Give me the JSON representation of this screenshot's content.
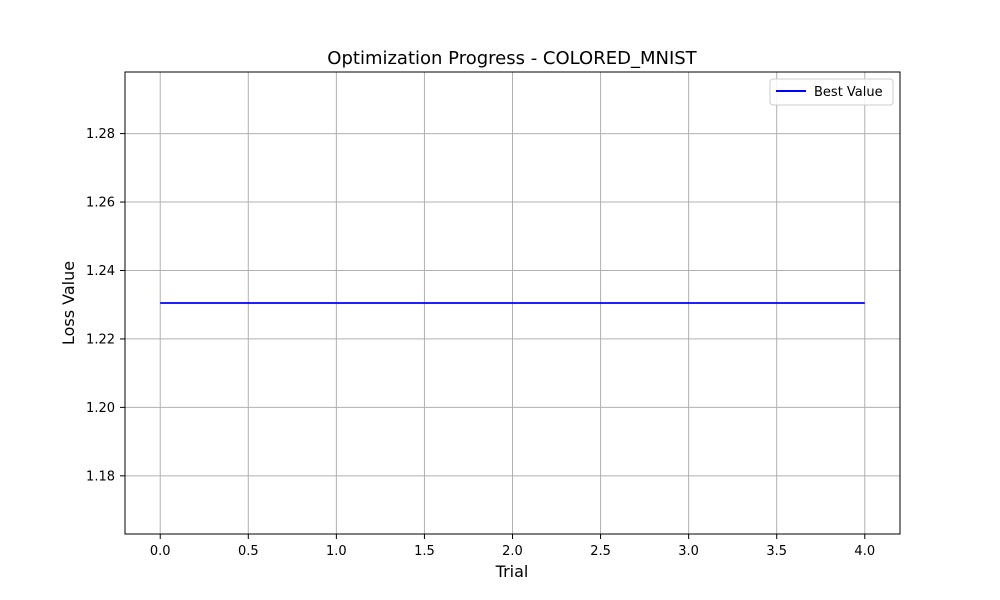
{
  "chart_data": {
    "type": "line",
    "title": "Optimization Progress - COLORED_MNIST",
    "xlabel": "Trial",
    "ylabel": "Loss Value",
    "xlim": [
      -0.2,
      4.2
    ],
    "ylim": [
      1.163,
      1.298
    ],
    "x_ticks": [
      0.0,
      0.5,
      1.0,
      1.5,
      2.0,
      2.5,
      3.0,
      3.5,
      4.0
    ],
    "x_tick_labels": [
      "0.0",
      "0.5",
      "1.0",
      "1.5",
      "2.0",
      "2.5",
      "3.0",
      "3.5",
      "4.0"
    ],
    "y_ticks": [
      1.18,
      1.2,
      1.22,
      1.24,
      1.26,
      1.28
    ],
    "y_tick_labels": [
      "1.18",
      "1.20",
      "1.22",
      "1.24",
      "1.26",
      "1.28"
    ],
    "grid": true,
    "legend_position": "top-right",
    "series": [
      {
        "name": "Best Value",
        "color": "#0000ff",
        "x": [
          0,
          1,
          2,
          3,
          4
        ],
        "y": [
          1.2305,
          1.2305,
          1.2305,
          1.2305,
          1.2305
        ]
      }
    ]
  }
}
